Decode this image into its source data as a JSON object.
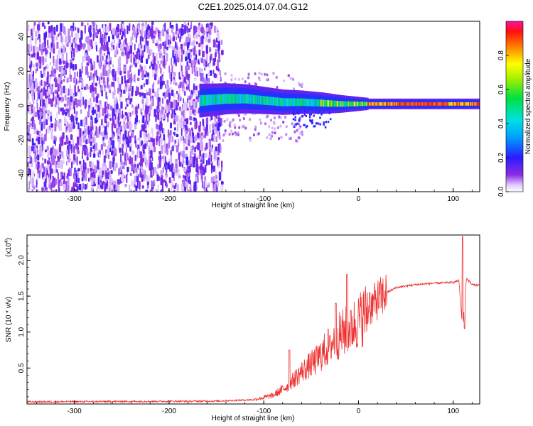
{
  "title": "C2E1.2025.014.07.04.G12",
  "chart_data": [
    {
      "type": "heatmap",
      "xlabel": "Height of straight line (km)",
      "ylabel": "Frequency (Hz)",
      "xlim": [
        -350,
        128
      ],
      "ylim": [
        -50,
        49
      ],
      "xticks": [
        "-300",
        "-200",
        "-100",
        "0",
        "100"
      ],
      "yticks": [
        "-40",
        "-20",
        "0",
        "20",
        "40"
      ],
      "colorbar": {
        "label": "Normalized spectral amplitude",
        "range": [
          0,
          1
        ],
        "ticks": [
          "0.0",
          "0.2",
          "0.4",
          "0.6",
          "0.8"
        ]
      },
      "features": {
        "noise_region_x": [
          -350,
          -145
        ],
        "carrier_trace_points": [
          [
            -165,
            3
          ],
          [
            -140,
            4
          ],
          [
            -120,
            4
          ],
          [
            -100,
            3
          ],
          [
            -80,
            2
          ],
          [
            -60,
            2
          ],
          [
            -40,
            1.5
          ],
          [
            -20,
            1
          ],
          [
            0,
            1
          ],
          [
            20,
            1
          ],
          [
            40,
            1
          ],
          [
            60,
            1
          ],
          [
            80,
            1
          ],
          [
            100,
            1
          ],
          [
            128,
            1
          ]
        ]
      }
    },
    {
      "type": "line",
      "xlabel": "Height of straight line (km)",
      "ylabel": "SNR (10 * v/v)",
      "yscale_label": "(x10",
      "yscale_exp": "4",
      "xlim": [
        -350,
        128
      ],
      "ylim": [
        0,
        2.35
      ],
      "xticks": [
        "-300",
        "-200",
        "-100",
        "0",
        "100"
      ],
      "yticks": [
        "0.5",
        "1.0",
        "1.5",
        "2.0"
      ],
      "series": [
        {
          "color": "#ee3030",
          "envelope": [
            [
              -350,
              0.03
            ],
            [
              -150,
              0.04
            ],
            [
              -110,
              0.06
            ],
            [
              -90,
              0.12
            ],
            [
              -75,
              0.25
            ],
            [
              -60,
              0.45
            ],
            [
              -45,
              0.6
            ],
            [
              -35,
              0.75
            ],
            [
              -25,
              0.9
            ],
            [
              -15,
              1.0
            ],
            [
              0,
              1.15
            ],
            [
              10,
              1.3
            ],
            [
              20,
              1.45
            ],
            [
              30,
              1.55
            ],
            [
              40,
              1.62
            ],
            [
              60,
              1.66
            ],
            [
              80,
              1.68
            ],
            [
              100,
              1.69
            ],
            [
              106,
              1.72
            ],
            [
              110,
              1.05
            ],
            [
              114,
              1.75
            ],
            [
              120,
              1.66
            ],
            [
              128,
              1.65
            ]
          ],
          "spikes": [
            [
              -73,
              0.75
            ],
            [
              -30,
              0.95
            ],
            [
              -24,
              1.4
            ],
            [
              -12,
              1.8
            ],
            [
              -8,
              1.3
            ],
            [
              12,
              1.55
            ],
            [
              110,
              2.33
            ],
            [
              112,
              1.05
            ]
          ]
        }
      ]
    }
  ]
}
